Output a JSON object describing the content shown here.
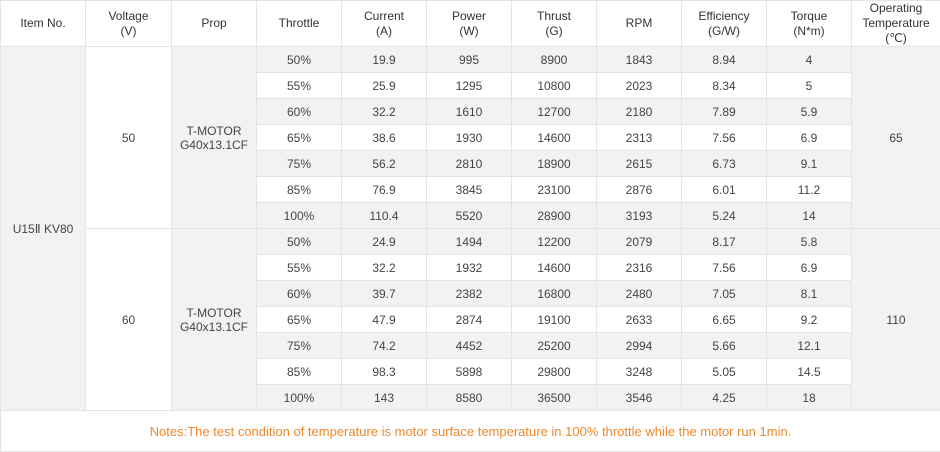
{
  "headers": [
    {
      "line1": "Item No.",
      "line2": ""
    },
    {
      "line1": "Voltage",
      "line2": "(V)"
    },
    {
      "line1": "Prop",
      "line2": ""
    },
    {
      "line1": "Throttle",
      "line2": ""
    },
    {
      "line1": "Current",
      "line2": "(A)"
    },
    {
      "line1": "Power",
      "line2": "(W)"
    },
    {
      "line1": "Thrust",
      "line2": "(G)"
    },
    {
      "line1": "RPM",
      "line2": ""
    },
    {
      "line1": "Efficiency",
      "line2": "(G/W)"
    },
    {
      "line1": "Torque",
      "line2": "(N*m)"
    },
    {
      "line1": "Operating Temperature",
      "line2": "(℃)"
    }
  ],
  "item_no": "U15Ⅱ  KV80",
  "groups": [
    {
      "voltage": "50",
      "prop": "T-MOTOR G40x13.1CF",
      "temperature": "65",
      "rows": [
        {
          "throttle": "50%",
          "current": "19.9",
          "power": "995",
          "thrust": "8900",
          "rpm": "1843",
          "efficiency": "8.94",
          "torque": "4"
        },
        {
          "throttle": "55%",
          "current": "25.9",
          "power": "1295",
          "thrust": "10800",
          "rpm": "2023",
          "efficiency": "8.34",
          "torque": "5"
        },
        {
          "throttle": "60%",
          "current": "32.2",
          "power": "1610",
          "thrust": "12700",
          "rpm": "2180",
          "efficiency": "7.89",
          "torque": "5.9"
        },
        {
          "throttle": "65%",
          "current": "38.6",
          "power": "1930",
          "thrust": "14600",
          "rpm": "2313",
          "efficiency": "7.56",
          "torque": "6.9"
        },
        {
          "throttle": "75%",
          "current": "56.2",
          "power": "2810",
          "thrust": "18900",
          "rpm": "2615",
          "efficiency": "6.73",
          "torque": "9.1"
        },
        {
          "throttle": "85%",
          "current": "76.9",
          "power": "3845",
          "thrust": "23100",
          "rpm": "2876",
          "efficiency": "6.01",
          "torque": "11.2"
        },
        {
          "throttle": "100%",
          "current": "110.4",
          "power": "5520",
          "thrust": "28900",
          "rpm": "3193",
          "efficiency": "5.24",
          "torque": "14"
        }
      ]
    },
    {
      "voltage": "60",
      "prop": "T-MOTOR G40x13.1CF",
      "temperature": "110",
      "rows": [
        {
          "throttle": "50%",
          "current": "24.9",
          "power": "1494",
          "thrust": "12200",
          "rpm": "2079",
          "efficiency": "8.17",
          "torque": "5.8"
        },
        {
          "throttle": "55%",
          "current": "32.2",
          "power": "1932",
          "thrust": "14600",
          "rpm": "2316",
          "efficiency": "7.56",
          "torque": "6.9"
        },
        {
          "throttle": "60%",
          "current": "39.7",
          "power": "2382",
          "thrust": "16800",
          "rpm": "2480",
          "efficiency": "7.05",
          "torque": "8.1"
        },
        {
          "throttle": "65%",
          "current": "47.9",
          "power": "2874",
          "thrust": "19100",
          "rpm": "2633",
          "efficiency": "6.65",
          "torque": "9.2"
        },
        {
          "throttle": "75%",
          "current": "74.2",
          "power": "4452",
          "thrust": "25200",
          "rpm": "2994",
          "efficiency": "5.66",
          "torque": "12.1"
        },
        {
          "throttle": "85%",
          "current": "98.3",
          "power": "5898",
          "thrust": "29800",
          "rpm": "3248",
          "efficiency": "5.05",
          "torque": "14.5"
        },
        {
          "throttle": "100%",
          "current": "143",
          "power": "8580",
          "thrust": "36500",
          "rpm": "3546",
          "efficiency": "4.25",
          "torque": "18"
        }
      ]
    }
  ],
  "notes": "Notes:The test condition of temperature is motor surface temperature in 100% throttle while the motor run 1min.",
  "colors": {
    "notes": "#f0882a",
    "shade": "#f2f2f2",
    "border": "#e4e4e4"
  }
}
